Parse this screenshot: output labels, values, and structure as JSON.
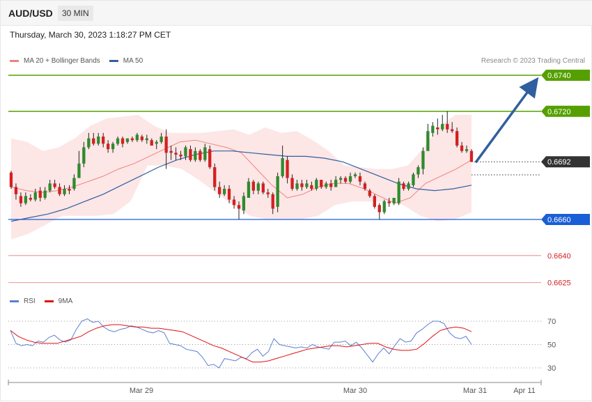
{
  "header": {
    "symbol": "AUD/USD",
    "interval": "30 MIN"
  },
  "datetime": "Thursday, March 30, 2023 1:18:27 PM CET",
  "credit": "Research © 2023 Trading Central",
  "legend_main": [
    {
      "label": "MA 20 + Bollinger Bands",
      "color": "#f08080"
    },
    {
      "label": "MA 50",
      "color": "#2f5f9e"
    }
  ],
  "legend_rsi": [
    {
      "label": "RSI",
      "color": "#5b7fd1"
    },
    {
      "label": "9MA",
      "color": "#e01010"
    }
  ],
  "colors": {
    "up": "#2e8b2e",
    "down": "#d42020",
    "resistance": "#55a000",
    "support": "#1a5fd6",
    "target": "#f0a0a0",
    "arrow": "#2f5f9e",
    "current": "#333333"
  },
  "chart_data": {
    "type": "candlestick",
    "symbol": "AUD/USD",
    "timeframe": "30 MIN",
    "x_ticks": [
      "Mar 29",
      "Mar 30",
      "Mar 31",
      "Apr 11"
    ],
    "y_range": [
      0.662,
      0.6745
    ],
    "levels": [
      {
        "label": "0.6740",
        "value": 0.674,
        "kind": "resistance"
      },
      {
        "label": "0.6720",
        "value": 0.672,
        "kind": "resistance"
      },
      {
        "label": "0.6692",
        "value": 0.6692,
        "kind": "current"
      },
      {
        "label": "0.6660",
        "value": 0.666,
        "kind": "support"
      },
      {
        "label": "0.6640",
        "value": 0.664,
        "kind": "target"
      },
      {
        "label": "0.6625",
        "value": 0.6625,
        "kind": "target"
      }
    ],
    "forecast_arrow": {
      "from": 0.6692,
      "to": 0.6738,
      "direction": "up"
    },
    "candles": [
      [
        0.6686,
        0.6678,
        0.6687,
        0.6677
      ],
      [
        0.6678,
        0.6674,
        0.668,
        0.6671
      ],
      [
        0.6673,
        0.6669,
        0.6675,
        0.6667
      ],
      [
        0.6669,
        0.6673,
        0.6675,
        0.6668
      ],
      [
        0.6672,
        0.6671,
        0.6674,
        0.667
      ],
      [
        0.6671,
        0.6675,
        0.6677,
        0.667
      ],
      [
        0.6676,
        0.6672,
        0.6678,
        0.667
      ],
      [
        0.6672,
        0.6676,
        0.6678,
        0.6671
      ],
      [
        0.6676,
        0.668,
        0.6682,
        0.6675
      ],
      [
        0.668,
        0.6678,
        0.6682,
        0.6677
      ],
      [
        0.6678,
        0.6674,
        0.668,
        0.6673
      ],
      [
        0.6674,
        0.6677,
        0.6679,
        0.6673
      ],
      [
        0.6677,
        0.6676,
        0.6679,
        0.6674
      ],
      [
        0.6677,
        0.6683,
        0.6685,
        0.6676
      ],
      [
        0.6683,
        0.6691,
        0.6698,
        0.6683
      ],
      [
        0.6691,
        0.67,
        0.6703,
        0.6689
      ],
      [
        0.67,
        0.6705,
        0.6708,
        0.6699
      ],
      [
        0.6705,
        0.6702,
        0.6708,
        0.6701
      ],
      [
        0.6702,
        0.6706,
        0.6708,
        0.6701
      ],
      [
        0.6706,
        0.6702,
        0.6708,
        0.67
      ],
      [
        0.6702,
        0.6699,
        0.6704,
        0.6697
      ],
      [
        0.6699,
        0.6702,
        0.6703,
        0.6697
      ],
      [
        0.6702,
        0.6705,
        0.6706,
        0.6701
      ],
      [
        0.6705,
        0.6702,
        0.6706,
        0.67
      ],
      [
        0.6703,
        0.6705,
        0.6705,
        0.6702
      ],
      [
        0.6705,
        0.6704,
        0.6706,
        0.6703
      ],
      [
        0.6704,
        0.6707,
        0.6708,
        0.6703
      ],
      [
        0.6706,
        0.6704,
        0.6707,
        0.6703
      ],
      [
        0.6704,
        0.6705,
        0.6707,
        0.6702
      ],
      [
        0.6704,
        0.6701,
        0.6705,
        0.6701
      ],
      [
        0.6702,
        0.6703,
        0.6704,
        0.6699
      ],
      [
        0.6703,
        0.6706,
        0.6708,
        0.6702
      ],
      [
        0.6706,
        0.6697,
        0.671,
        0.6688
      ],
      [
        0.6698,
        0.6697,
        0.6701,
        0.6693
      ],
      [
        0.6697,
        0.6696,
        0.67,
        0.6693
      ],
      [
        0.6696,
        0.6695,
        0.6698,
        0.6693
      ],
      [
        0.6695,
        0.67,
        0.6701,
        0.6693
      ],
      [
        0.6699,
        0.6693,
        0.6701,
        0.6692
      ],
      [
        0.6693,
        0.6698,
        0.67,
        0.6692
      ],
      [
        0.6698,
        0.6693,
        0.6699,
        0.6692
      ],
      [
        0.6693,
        0.67,
        0.6702,
        0.6692
      ],
      [
        0.6699,
        0.6689,
        0.6701,
        0.6688
      ],
      [
        0.6689,
        0.6678,
        0.6691,
        0.6676
      ],
      [
        0.6678,
        0.6674,
        0.6681,
        0.6672
      ],
      [
        0.6674,
        0.6677,
        0.6679,
        0.6673
      ],
      [
        0.6677,
        0.6671,
        0.6679,
        0.6669
      ],
      [
        0.6671,
        0.6668,
        0.6673,
        0.6666
      ],
      [
        0.6668,
        0.6666,
        0.667,
        0.666
      ],
      [
        0.6665,
        0.6673,
        0.6675,
        0.6663
      ],
      [
        0.6672,
        0.6681,
        0.6683,
        0.6672
      ],
      [
        0.6681,
        0.6676,
        0.6682,
        0.6674
      ],
      [
        0.6676,
        0.668,
        0.6681,
        0.6674
      ],
      [
        0.668,
        0.6675,
        0.6681,
        0.6674
      ],
      [
        0.6675,
        0.6674,
        0.6677,
        0.6672
      ],
      [
        0.6674,
        0.6666,
        0.6675,
        0.6663
      ],
      [
        0.6667,
        0.6684,
        0.6686,
        0.6664
      ],
      [
        0.6684,
        0.6694,
        0.6701,
        0.6683
      ],
      [
        0.6693,
        0.6683,
        0.6695,
        0.668
      ],
      [
        0.6683,
        0.6677,
        0.6685,
        0.6676
      ],
      [
        0.6677,
        0.668,
        0.6682,
        0.6676
      ],
      [
        0.668,
        0.6678,
        0.6682,
        0.6676
      ],
      [
        0.6678,
        0.668,
        0.6682,
        0.6677
      ],
      [
        0.6679,
        0.6677,
        0.6681,
        0.6676
      ],
      [
        0.6677,
        0.6682,
        0.6683,
        0.6676
      ],
      [
        0.6682,
        0.6678,
        0.6682,
        0.6677
      ],
      [
        0.6678,
        0.668,
        0.6681,
        0.6677
      ],
      [
        0.668,
        0.6678,
        0.6682,
        0.6676
      ],
      [
        0.6678,
        0.6682,
        0.6684,
        0.6678
      ],
      [
        0.6682,
        0.6683,
        0.6684,
        0.668
      ],
      [
        0.6683,
        0.6681,
        0.6684,
        0.668
      ],
      [
        0.6681,
        0.6684,
        0.6686,
        0.668
      ],
      [
        0.6684,
        0.6685,
        0.6686,
        0.6683
      ],
      [
        0.6684,
        0.6681,
        0.6686,
        0.6679
      ],
      [
        0.668,
        0.6677,
        0.6681,
        0.6676
      ],
      [
        0.6676,
        0.6673,
        0.6677,
        0.6672
      ],
      [
        0.6673,
        0.6667,
        0.6674,
        0.6666
      ],
      [
        0.6668,
        0.6664,
        0.6669,
        0.666
      ],
      [
        0.6664,
        0.667,
        0.6671,
        0.6663
      ],
      [
        0.667,
        0.6669,
        0.6672,
        0.6667
      ],
      [
        0.6669,
        0.6672,
        0.6672,
        0.6668
      ],
      [
        0.6669,
        0.6681,
        0.6683,
        0.6668
      ],
      [
        0.668,
        0.6677,
        0.6681,
        0.6676
      ],
      [
        0.6677,
        0.668,
        0.6681,
        0.6676
      ],
      [
        0.6679,
        0.6685,
        0.6686,
        0.6678
      ],
      [
        0.6685,
        0.6689,
        0.669,
        0.6683
      ],
      [
        0.6688,
        0.6698,
        0.67,
        0.6685
      ],
      [
        0.6698,
        0.6709,
        0.6713,
        0.6698
      ],
      [
        0.6708,
        0.6712,
        0.6714,
        0.6706
      ],
      [
        0.6711,
        0.671,
        0.6716,
        0.6707
      ],
      [
        0.671,
        0.6713,
        0.6718,
        0.6709
      ],
      [
        0.6713,
        0.671,
        0.672,
        0.6708
      ],
      [
        0.671,
        0.6709,
        0.6714,
        0.6708
      ],
      [
        0.6709,
        0.6701,
        0.6711,
        0.67
      ],
      [
        0.6701,
        0.6698,
        0.6703,
        0.6697
      ],
      [
        0.6698,
        0.6699,
        0.6701,
        0.6697
      ],
      [
        0.6698,
        0.6692,
        0.6699,
        0.6692
      ]
    ],
    "ma20": [
      0.6678,
      0.6676,
      0.6675,
      0.6676,
      0.6678,
      0.6681,
      0.6684,
      0.6688,
      0.6691,
      0.6695,
      0.6699,
      0.6703,
      0.6704,
      0.6702,
      0.67,
      0.6697,
      0.6688,
      0.6679,
      0.6672,
      0.6674,
      0.6678,
      0.668,
      0.668,
      0.6677,
      0.6673,
      0.6669,
      0.6672,
      0.668,
      0.6684,
      0.6688,
      0.6693
    ],
    "ma50": [
      0.6659,
      0.6661,
      0.6663,
      0.6666,
      0.667,
      0.6674,
      0.6679,
      0.6684,
      0.6689,
      0.6693,
      0.6696,
      0.6698,
      0.6698,
      0.6697,
      0.6696,
      0.6695,
      0.6695,
      0.6694,
      0.6692,
      0.6688,
      0.6684,
      0.668,
      0.6677,
      0.6676,
      0.6677,
      0.6679
    ],
    "bb_upper": [
      0.6705,
      0.6703,
      0.6698,
      0.67,
      0.6705,
      0.6712,
      0.6716,
      0.6717,
      0.6718,
      0.6712,
      0.6708,
      0.6708,
      0.6708,
      0.6709,
      0.671,
      0.6707,
      0.6711,
      0.6708,
      0.6709,
      0.6704,
      0.6698,
      0.669,
      0.6689,
      0.6688,
      0.6688,
      0.669,
      0.67,
      0.6712,
      0.6718,
      0.6718
    ],
    "bb_lower": [
      0.6649,
      0.6652,
      0.6657,
      0.6662,
      0.6662,
      0.6662,
      0.6663,
      0.667,
      0.669,
      0.669,
      0.6688,
      0.6682,
      0.6675,
      0.6668,
      0.6662,
      0.666,
      0.666,
      0.666,
      0.6662,
      0.6668,
      0.667,
      0.667,
      0.667,
      0.6668,
      0.6662,
      0.6659,
      0.666,
      0.6664
    ],
    "rsi": {
      "levels": [
        70,
        50,
        30
      ],
      "rsi": [
        62,
        51,
        49,
        50,
        49,
        53,
        52,
        56,
        58,
        54,
        52,
        54,
        63,
        70,
        72,
        69,
        70,
        65,
        62,
        61,
        63,
        64,
        66,
        65,
        63,
        61,
        60,
        62,
        60,
        51,
        50,
        49,
        46,
        45,
        44,
        39,
        32,
        33,
        30,
        38,
        37,
        36,
        39,
        38,
        43,
        46,
        40,
        44,
        55,
        50,
        49,
        48,
        47,
        48,
        47,
        50,
        48,
        47,
        46,
        52,
        52,
        53,
        49,
        52,
        47,
        41,
        35,
        42,
        47,
        42,
        49,
        55,
        52,
        53,
        60,
        63,
        67,
        70,
        70,
        68,
        60,
        56,
        55,
        57,
        50
      ],
      "ma9": [
        62,
        57,
        54,
        52,
        51,
        51,
        51,
        53,
        55,
        57,
        61,
        64,
        66,
        67,
        67,
        66,
        65,
        65,
        64,
        64,
        63,
        62,
        61,
        58,
        55,
        52,
        49,
        47,
        44,
        41,
        38,
        35,
        35,
        36,
        38,
        40,
        42,
        44,
        46,
        47,
        48,
        49,
        49,
        48,
        49,
        50,
        51,
        51,
        48,
        46,
        45,
        45,
        46,
        51,
        57,
        62,
        64,
        65,
        64,
        61
      ]
    }
  }
}
